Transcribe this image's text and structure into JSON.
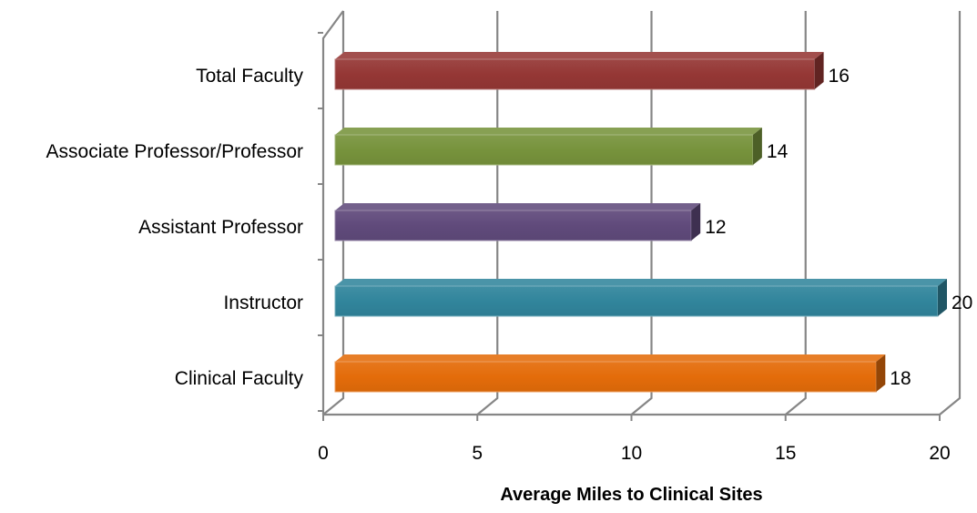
{
  "chart_data": {
    "type": "bar",
    "orientation": "horizontal",
    "style": "3d",
    "title": "",
    "xlabel": "Average Miles to Clinical Sites",
    "ylabel": "",
    "xlim": [
      0,
      20
    ],
    "x_ticks": [
      "0",
      "5",
      "10",
      "15",
      "20"
    ],
    "grid": "vertical",
    "legend": "none",
    "categories": [
      "Total Faculty",
      "Associate Professor/Professor",
      "Assistant Professor",
      "Instructor",
      "Clinical Faculty"
    ],
    "values": [
      16,
      14,
      12,
      20,
      18
    ],
    "data_labels": [
      "16",
      "14",
      "12",
      "20",
      "18"
    ],
    "colors": [
      "#953735",
      "#77933c",
      "#604a7b",
      "#31859c",
      "#e46c0a"
    ]
  }
}
